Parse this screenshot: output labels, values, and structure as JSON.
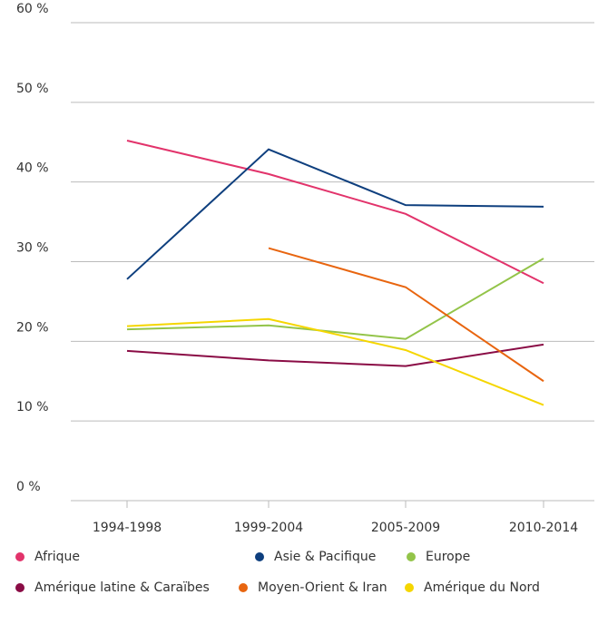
{
  "chart_data": {
    "type": "line",
    "categories": [
      "1994-1998",
      "1999-2004",
      "2005-2009",
      "2010-2014"
    ],
    "ylim": [
      0,
      60
    ],
    "yticks": [
      {
        "value": 0,
        "label": "0 %"
      },
      {
        "value": 10,
        "label": "10 %"
      },
      {
        "value": 20,
        "label": "20 %"
      },
      {
        "value": 30,
        "label": "30 %"
      },
      {
        "value": 40,
        "label": "40 %"
      },
      {
        "value": 50,
        "label": "50 %"
      },
      {
        "value": 60,
        "label": "60 %"
      }
    ],
    "grid": true,
    "series": [
      {
        "name": "Afrique",
        "color": "#e2336b",
        "values": [
          45.2,
          41.0,
          36.0,
          27.3
        ]
      },
      {
        "name": "Asie & Pacifique",
        "color": "#0e3f7e",
        "values": [
          27.8,
          44.1,
          37.1,
          36.9
        ]
      },
      {
        "name": "Europe",
        "color": "#93c449",
        "values": [
          21.5,
          22.0,
          20.3,
          30.4
        ]
      },
      {
        "name": "Amérique latine & Caraïbes",
        "color": "#8a0c45",
        "values": [
          18.8,
          17.6,
          16.9,
          19.6
        ]
      },
      {
        "name": "Moyen-Orient & Iran",
        "color": "#e8650f",
        "values": [
          null,
          31.7,
          26.8,
          15.0
        ]
      },
      {
        "name": "Amérique du Nord",
        "color": "#f5d600",
        "values": [
          21.9,
          22.8,
          18.9,
          12.0
        ]
      }
    ]
  }
}
